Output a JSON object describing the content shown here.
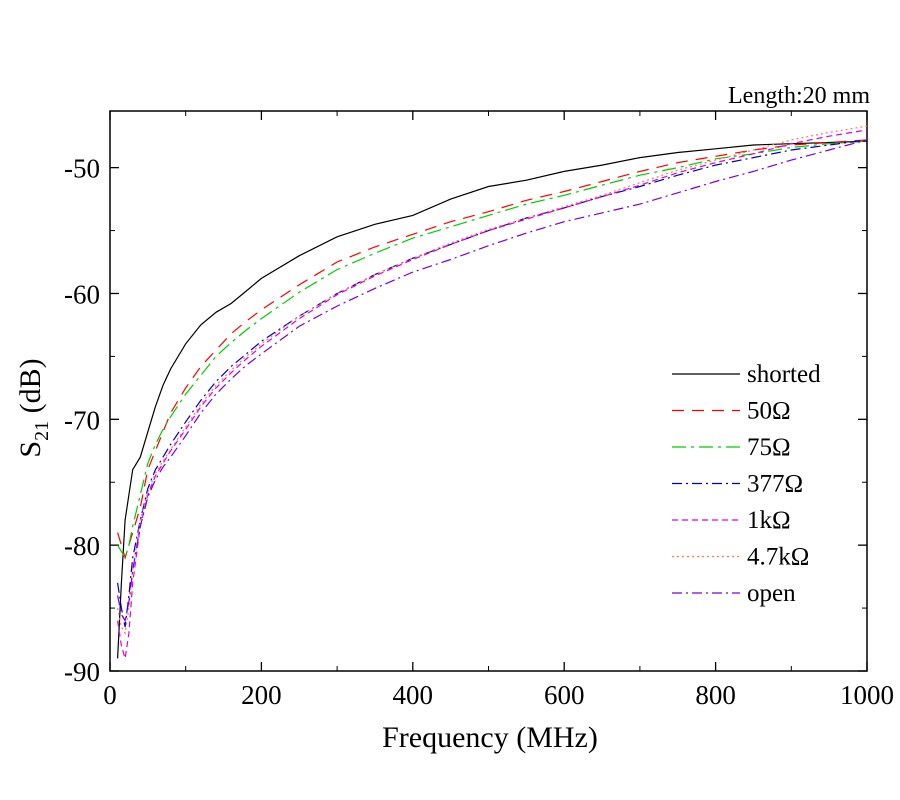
{
  "chart_data": {
    "type": "line",
    "title": "Length:20 mm",
    "xlabel": "Frequency (MHz)",
    "ylabel_main": "S",
    "ylabel_sub": "21",
    "ylabel_unit": " (dB)",
    "xlim": [
      0,
      1000
    ],
    "ylim": [
      -90,
      -45.5
    ],
    "xticks": [
      0,
      200,
      400,
      600,
      800,
      1000
    ],
    "xtick_labels": [
      "0",
      "200",
      "400",
      "600",
      "800",
      "1000"
    ],
    "yticks": [
      -90,
      -80,
      -70,
      -60,
      -50
    ],
    "ytick_labels": [
      "-90",
      "-80",
      "-70",
      "-60",
      "-50"
    ],
    "grid": false,
    "legend_position": "center-right",
    "series": [
      {
        "name": "shorted",
        "color": "#000000",
        "dash": "none",
        "x": [
          10,
          15,
          20,
          25,
          30,
          40,
          50,
          60,
          70,
          80,
          100,
          120,
          140,
          160,
          180,
          200,
          250,
          300,
          350,
          400,
          450,
          500,
          550,
          600,
          650,
          700,
          750,
          800,
          850,
          900,
          950,
          1000
        ],
        "y": [
          -89,
          -83,
          -78,
          -76,
          -74,
          -73,
          -71,
          -69,
          -67.3,
          -66,
          -64,
          -62.5,
          -61.5,
          -60.8,
          -59.8,
          -58.8,
          -57,
          -55.5,
          -54.5,
          -53.8,
          -52.5,
          -51.5,
          -51,
          -50.3,
          -49.8,
          -49.2,
          -48.8,
          -48.5,
          -48.2,
          -48.1,
          -48,
          -47.9
        ]
      },
      {
        "name": "50Ω",
        "color": "#ff0000",
        "dash": "12,8",
        "x": [
          10,
          15,
          20,
          25,
          30,
          40,
          50,
          60,
          70,
          80,
          100,
          120,
          140,
          160,
          180,
          200,
          250,
          300,
          350,
          400,
          450,
          500,
          550,
          600,
          650,
          700,
          750,
          800,
          850,
          900,
          950,
          1000
        ],
        "y": [
          -79,
          -80,
          -81,
          -80,
          -79,
          -77,
          -74,
          -72.5,
          -71,
          -69.5,
          -67.5,
          -65.8,
          -64.5,
          -63.2,
          -62.2,
          -61.3,
          -59.3,
          -57.5,
          -56.3,
          -55.3,
          -54.3,
          -53.5,
          -52.6,
          -51.9,
          -51.1,
          -50.3,
          -49.6,
          -49.1,
          -48.6,
          -48.2,
          -48,
          -47.8
        ]
      },
      {
        "name": "75Ω",
        "color": "#00cc00",
        "dash": "14,5,3,5",
        "x": [
          10,
          15,
          20,
          25,
          30,
          40,
          50,
          60,
          70,
          80,
          100,
          120,
          140,
          160,
          180,
          200,
          250,
          300,
          350,
          400,
          450,
          500,
          550,
          600,
          650,
          700,
          750,
          800,
          850,
          900,
          950,
          1000
        ],
        "y": [
          -80,
          -80.5,
          -81,
          -80,
          -78.5,
          -76,
          -73.5,
          -72,
          -70.8,
          -69.8,
          -68,
          -66.5,
          -65,
          -63.9,
          -62.9,
          -62,
          -59.9,
          -58.1,
          -56.8,
          -55.6,
          -54.7,
          -53.8,
          -52.9,
          -52.2,
          -51.4,
          -50.6,
          -50,
          -49.3,
          -48.9,
          -48.4,
          -48.1,
          -47.9
        ]
      },
      {
        "name": "377Ω",
        "color": "#0000bb",
        "dash": "10,4,2,4",
        "x": [
          10,
          15,
          20,
          25,
          30,
          40,
          50,
          60,
          70,
          80,
          100,
          120,
          140,
          160,
          180,
          200,
          250,
          300,
          350,
          400,
          450,
          500,
          550,
          600,
          650,
          700,
          750,
          800,
          850,
          900,
          950,
          1000
        ],
        "y": [
          -83,
          -85,
          -86.5,
          -84,
          -81,
          -78,
          -75.5,
          -74,
          -73,
          -72,
          -70.2,
          -68.5,
          -67,
          -65.8,
          -64.8,
          -63.8,
          -61.8,
          -60,
          -58.5,
          -57.2,
          -56.1,
          -55,
          -54,
          -53.2,
          -52.3,
          -51.5,
          -50.6,
          -49.8,
          -49.2,
          -48.6,
          -48.2,
          -47.8
        ]
      },
      {
        "name": "1kΩ",
        "color": "#dd00dd",
        "dash": "6,4",
        "x": [
          10,
          15,
          20,
          25,
          30,
          40,
          50,
          60,
          70,
          80,
          100,
          120,
          140,
          160,
          180,
          200,
          250,
          300,
          350,
          400,
          450,
          500,
          550,
          600,
          650,
          700,
          750,
          800,
          850,
          900,
          950,
          1000
        ],
        "y": [
          -86,
          -88,
          -89,
          -87,
          -83,
          -78.5,
          -76,
          -74.5,
          -73.5,
          -72.5,
          -70.8,
          -69,
          -67.5,
          -66.3,
          -65.2,
          -64.2,
          -62,
          -60.1,
          -58.6,
          -57.3,
          -56.1,
          -55,
          -54.1,
          -53.2,
          -52.3,
          -51.4,
          -50.4,
          -49.6,
          -48.9,
          -48.1,
          -47.5,
          -47
        ]
      },
      {
        "name": "4.7kΩ",
        "color": "#ff7755",
        "dash": "2,3",
        "x": [
          10,
          15,
          20,
          25,
          30,
          40,
          50,
          60,
          70,
          80,
          100,
          120,
          140,
          160,
          180,
          200,
          250,
          300,
          350,
          400,
          450,
          500,
          550,
          600,
          650,
          700,
          750,
          800,
          850,
          900,
          950,
          1000
        ],
        "y": [
          -85,
          -86.5,
          -87,
          -85,
          -82,
          -78,
          -75.8,
          -74.3,
          -73.3,
          -72.4,
          -70.6,
          -68.8,
          -67.3,
          -66.1,
          -65,
          -64,
          -61.8,
          -60,
          -58.5,
          -57.2,
          -56,
          -54.9,
          -54,
          -53.1,
          -52.2,
          -51.2,
          -50.2,
          -49.4,
          -48.6,
          -47.8,
          -47.2,
          -46.7
        ]
      },
      {
        "name": "open",
        "color": "#7700dd",
        "dash": "10,4,2,4",
        "x": [
          10,
          15,
          20,
          25,
          30,
          40,
          50,
          60,
          70,
          80,
          100,
          120,
          140,
          160,
          180,
          200,
          250,
          300,
          350,
          400,
          450,
          500,
          550,
          600,
          650,
          700,
          750,
          800,
          850,
          900,
          950,
          1000
        ],
        "y": [
          -84,
          -85.5,
          -86,
          -84.5,
          -82,
          -78.5,
          -76.2,
          -74.8,
          -73.8,
          -73,
          -71.3,
          -69.5,
          -68,
          -66.8,
          -65.7,
          -64.8,
          -62.6,
          -61,
          -59.6,
          -58.3,
          -57.3,
          -56.2,
          -55.2,
          -54.3,
          -53.6,
          -52.9,
          -52,
          -51.1,
          -50.3,
          -49.4,
          -48.6,
          -47.8
        ]
      }
    ]
  }
}
